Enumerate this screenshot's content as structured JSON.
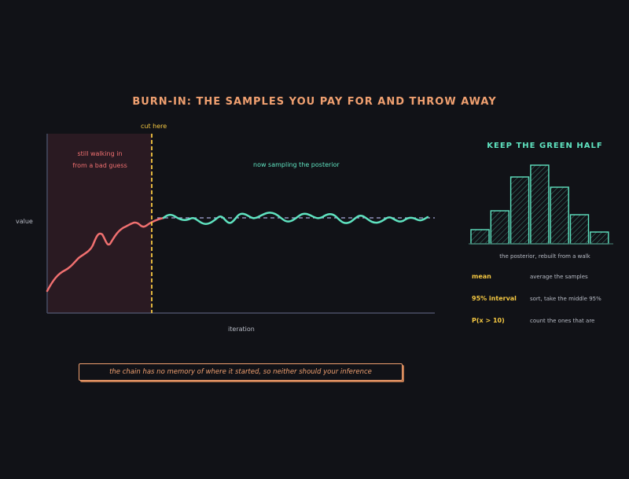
{
  "title": "BURN-IN: THE SAMPLES YOU PAY FOR AND THROW AWAY",
  "trace": {
    "y_label": "value",
    "x_label": "iteration",
    "cut_label": "cut here",
    "burnin_note_line1": "still walking in",
    "burnin_note_line2": "from a bad guess",
    "posterior_note": "now sampling the posterior"
  },
  "histogram": {
    "title": "KEEP THE GREEN HALF",
    "caption": "the posterior, rebuilt from a walk",
    "bar_levels": [
      0.18,
      0.42,
      0.85,
      1.0,
      0.72,
      0.37,
      0.15
    ]
  },
  "legend": [
    {
      "key": "mean",
      "desc": "average the samples"
    },
    {
      "key": "95% interval",
      "desc": "sort, take the middle 95%"
    },
    {
      "key": "P(x > 10)",
      "desc": "count the ones that are"
    }
  ],
  "footer": "the chain has no memory of where it started, so neither should your inference",
  "colors": {
    "background": "#111217",
    "burnin": "#f07070",
    "posterior": "#5fe3c0",
    "cut": "#f5c842",
    "accent": "#f0a070"
  }
}
